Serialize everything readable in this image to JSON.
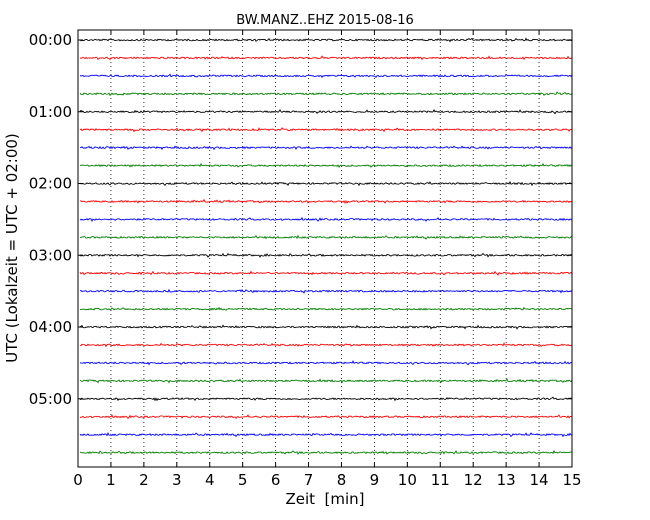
{
  "chart_data": {
    "type": "line",
    "title": "BW.MANZ..EHZ 2015-08-16",
    "xlabel": "Zeit  [min]",
    "ylabel": "UTC (Lokalzeit = UTC + 02:00)",
    "xlim": [
      0,
      15
    ],
    "x_ticks": [
      "0",
      "1",
      "2",
      "3",
      "4",
      "5",
      "6",
      "7",
      "8",
      "9",
      "10",
      "11",
      "12",
      "13",
      "14",
      "15"
    ],
    "y_ticks": [
      "00:00",
      "01:00",
      "02:00",
      "03:00",
      "04:00",
      "05:00"
    ],
    "grid": "vertical dotted at each minute",
    "trace_interval_minutes": 15,
    "trace_count": 24,
    "trace_colors": [
      "#000000",
      "#ff0000",
      "#0000ff",
      "#007f00"
    ],
    "traces": [
      {
        "start": "00:00",
        "color": "#000000"
      },
      {
        "start": "00:15",
        "color": "#ff0000"
      },
      {
        "start": "00:30",
        "color": "#0000ff"
      },
      {
        "start": "00:45",
        "color": "#007f00"
      },
      {
        "start": "01:00",
        "color": "#000000"
      },
      {
        "start": "01:15",
        "color": "#ff0000"
      },
      {
        "start": "01:30",
        "color": "#0000ff"
      },
      {
        "start": "01:45",
        "color": "#007f00"
      },
      {
        "start": "02:00",
        "color": "#000000"
      },
      {
        "start": "02:15",
        "color": "#ff0000"
      },
      {
        "start": "02:30",
        "color": "#0000ff"
      },
      {
        "start": "02:45",
        "color": "#007f00"
      },
      {
        "start": "03:00",
        "color": "#000000"
      },
      {
        "start": "03:15",
        "color": "#ff0000"
      },
      {
        "start": "03:30",
        "color": "#0000ff"
      },
      {
        "start": "03:45",
        "color": "#007f00"
      },
      {
        "start": "04:00",
        "color": "#000000"
      },
      {
        "start": "04:15",
        "color": "#ff0000"
      },
      {
        "start": "04:30",
        "color": "#0000ff"
      },
      {
        "start": "04:45",
        "color": "#007f00"
      },
      {
        "start": "05:00",
        "color": "#000000"
      },
      {
        "start": "05:15",
        "color": "#ff0000"
      },
      {
        "start": "05:30",
        "color": "#0000ff"
      },
      {
        "start": "05:45",
        "color": "#007f00"
      }
    ]
  }
}
